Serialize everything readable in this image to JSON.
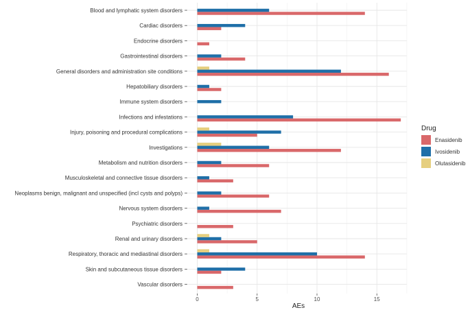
{
  "chart_data": {
    "type": "bar",
    "orientation": "horizontal",
    "title": "",
    "xlabel": "AEs",
    "ylabel": "",
    "xlim": [
      0,
      17.5
    ],
    "xticks": [
      0,
      5,
      10,
      15
    ],
    "grid": true,
    "legend_position": "right",
    "legend_title": "Drug",
    "categories": [
      "Blood and lymphatic system disorders",
      "Cardiac disorders",
      "Endocrine disorders",
      "Gastrointestinal disorders",
      "General disorders and administration site conditions",
      "Hepatobiliary disorders",
      "Immune system disorders",
      "Infections and infestations",
      "Injury, poisoning and procedural complications",
      "Investigations",
      "Metabolism and nutrition disorders",
      "Musculoskeletal and connective tissue disorders",
      "Neoplasms benign, malignant and unspecified (incl cysts and polyps)",
      "Nervous system disorders",
      "Psychiatric disorders",
      "Renal and urinary disorders",
      "Respiratory, thoracic and mediastinal disorders",
      "Skin and subcutaneous tissue disorders",
      "Vascular disorders"
    ],
    "series": [
      {
        "name": "Enasidenib",
        "color": "#d9686a",
        "values": [
          14,
          2,
          1,
          4,
          16,
          2,
          0,
          17,
          5,
          12,
          6,
          3,
          6,
          7,
          3,
          5,
          14,
          2,
          3
        ]
      },
      {
        "name": "Ivosidenib",
        "color": "#1f6fa8",
        "values": [
          6,
          4,
          0,
          2,
          12,
          1,
          2,
          8,
          7,
          6,
          2,
          1,
          2,
          1,
          0,
          2,
          10,
          4,
          0
        ]
      },
      {
        "name": "Olutasidenib",
        "color": "#e6cf7f",
        "values": [
          0,
          0,
          0,
          0,
          1,
          0,
          0,
          0,
          1,
          2,
          0,
          0,
          0,
          0,
          0,
          1,
          1,
          0,
          0
        ]
      }
    ]
  }
}
